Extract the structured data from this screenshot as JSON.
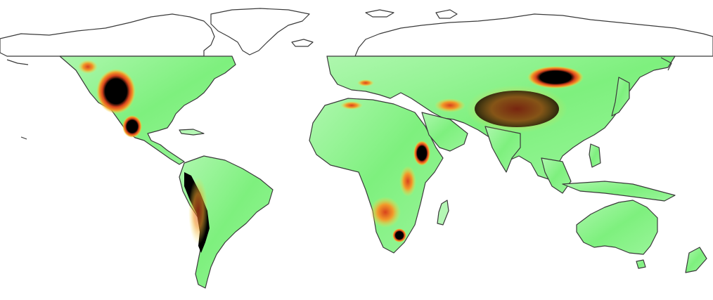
{
  "map": {
    "projection": "equirectangular",
    "data_extent_note": "",
    "colors": {
      "background": "#ffffff",
      "low": "#9af59a",
      "mid": "#45e045",
      "yellow": "#f2e64a",
      "orange": "#f29a2a",
      "red": "#d8431c",
      "high": "#000000",
      "coastline": "#3a3a3a",
      "unfilled_arctic": "#ffffff"
    },
    "legend": null,
    "title": ""
  }
}
